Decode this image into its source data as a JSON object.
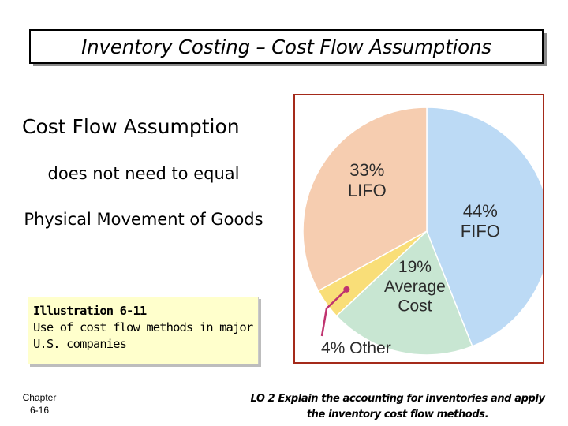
{
  "title": "Inventory Costing – Cost Flow Assumptions",
  "body": {
    "heading": "Cost Flow Assumption",
    "line1": "does not need to equal",
    "line2": "Physical Movement of Goods"
  },
  "illustration": {
    "label": "Illustration 6-11",
    "caption": "Use of cost flow methods in major U.S. companies"
  },
  "footer": {
    "chapter_label": "Chapter",
    "page": "6-16",
    "lo_text": "LO 2 Explain the accounting for inventories and apply the inventory cost flow methods."
  },
  "colors": {
    "frame": "#a42a1a",
    "fifo": "#bcdaf5",
    "lifo": "#f6cdb0",
    "average": "#c8e6d2",
    "other": "#f9de78",
    "other_pointer": "#c0336f"
  },
  "chart_data": {
    "type": "pie",
    "slices": [
      {
        "label": "FIFO",
        "value": 44,
        "value_label": "44%",
        "color": "#bcdaf5"
      },
      {
        "label": "Average Cost",
        "value": 19,
        "value_label": "19%",
        "color": "#c8e6d2"
      },
      {
        "label": "Other",
        "value": 4,
        "value_label": "4%",
        "color": "#f9de78"
      },
      {
        "label": "LIFO",
        "value": 33,
        "value_label": "33%",
        "color": "#f6cdb0"
      }
    ]
  }
}
